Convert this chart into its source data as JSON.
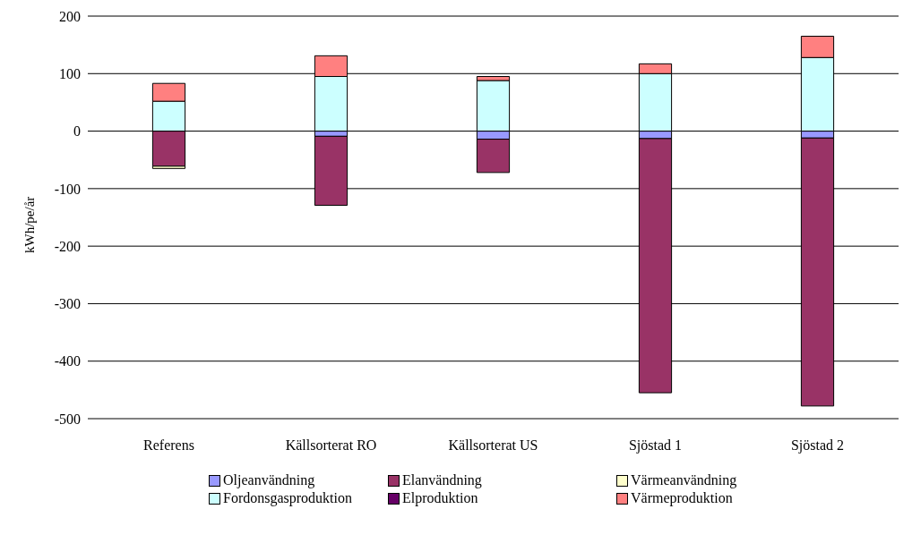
{
  "chart_data": {
    "type": "bar",
    "stacked": true,
    "ylabel": "kWh/pe/år",
    "categories": [
      "Referens",
      "Källsorterat RO",
      "Källsorterat US",
      "Sjöstad 1",
      "Sjöstad 2"
    ],
    "series": [
      {
        "name": "Oljeanvändning",
        "color": "#9999ff",
        "values": [
          null,
          -9,
          -14,
          -13,
          -12
        ]
      },
      {
        "name": "Elanvändning",
        "color": "#993366",
        "values": [
          -61,
          -120,
          -58,
          -442,
          -466
        ]
      },
      {
        "name": "Värmeanvändning",
        "color": "#ffffcc",
        "values": [
          -4,
          null,
          null,
          0,
          0
        ]
      },
      {
        "name": "Fordonsgasproduktion",
        "color": "#ccffff",
        "values": [
          52,
          95,
          88,
          100,
          128
        ]
      },
      {
        "name": "Elproduktion",
        "color": "#660066",
        "values": [
          0,
          0,
          0,
          0,
          0
        ]
      },
      {
        "name": "Värmeproduktion",
        "color": "#ff8080",
        "values": [
          31,
          36,
          7,
          17,
          37
        ]
      }
    ],
    "ylim": [
      -500,
      200
    ],
    "yticks": [
      -500,
      -400,
      -300,
      -200,
      -100,
      0,
      100,
      200
    ],
    "grid": "y",
    "legend": "bottom"
  }
}
